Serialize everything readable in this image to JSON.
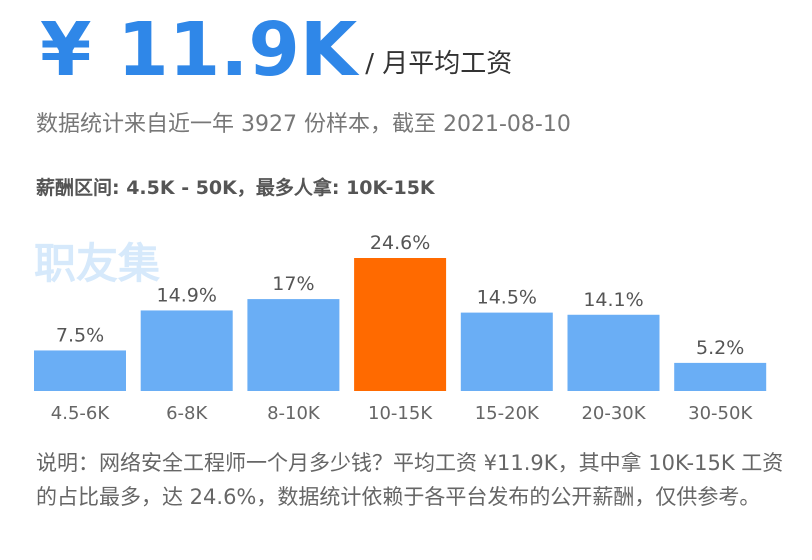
{
  "header": {
    "salary": "¥ 11.9K",
    "per_month": "/ 月平均工资"
  },
  "sample_text": "数据统计来自近一年 3927 份样本，截至 2021-08-10",
  "range_text": "薪酬区间: 4.5K - 50K，最多人拿: 10K-15K",
  "watermark": "职友集",
  "colors": {
    "bar": "#6aaef5",
    "highlight_bar": "#ff6a00",
    "salary_text": "#2f87e8"
  },
  "chart_data": {
    "type": "bar",
    "categories": [
      "4.5-6K",
      "6-8K",
      "8-10K",
      "10-15K",
      "15-20K",
      "20-30K",
      "30-50K"
    ],
    "values": [
      7.5,
      14.9,
      17,
      24.6,
      14.5,
      14.1,
      5.2
    ],
    "value_labels": [
      "7.5%",
      "14.9%",
      "17%",
      "24.6%",
      "14.5%",
      "14.1%",
      "5.2%"
    ],
    "highlight_index": 3,
    "ylim": [
      0,
      24.6
    ],
    "grid": false,
    "legend": "none"
  },
  "note": "说明：网络安全工程师一个月多少钱？平均工资 ¥11.9K，其中拿 10K-15K 工资的占比最多，达 24.6%，数据统计依赖于各平台发布的公开薪酬，仅供参考。"
}
